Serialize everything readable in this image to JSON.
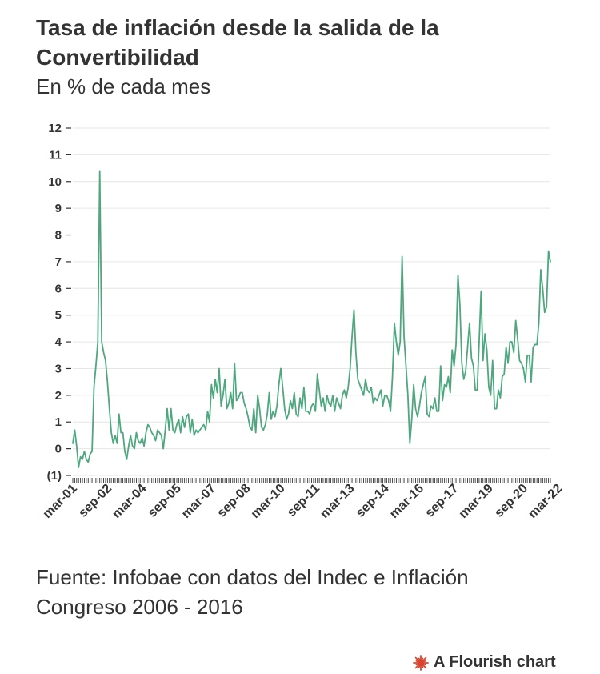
{
  "header": {
    "title": "Tasa de inflación desde la salida de la Convertibilidad",
    "subtitle": "En % de cada mes"
  },
  "footer": {
    "source": "Fuente: Infobae con datos del Indec e Inflación Congreso 2006 - 2016",
    "credit": "A Flourish chart"
  },
  "colors": {
    "line": "#4fa77f",
    "grid": "#e6e6e6",
    "text": "#333333",
    "flourish_logo": "#d9442d"
  },
  "chart_data": {
    "type": "line",
    "title": "",
    "xlabel": "",
    "ylabel": "",
    "ylim": [
      -1,
      12
    ],
    "y_ticks": [
      {
        "value": 12,
        "label": "12"
      },
      {
        "value": 11,
        "label": "11"
      },
      {
        "value": 10,
        "label": "10"
      },
      {
        "value": 9,
        "label": "9"
      },
      {
        "value": 8,
        "label": "8"
      },
      {
        "value": 7,
        "label": "7"
      },
      {
        "value": 6,
        "label": "6"
      },
      {
        "value": 5,
        "label": "5"
      },
      {
        "value": 4,
        "label": "4"
      },
      {
        "value": 3,
        "label": "3"
      },
      {
        "value": 2,
        "label": "2"
      },
      {
        "value": 1,
        "label": "1"
      },
      {
        "value": 0,
        "label": "0"
      },
      {
        "value": -1,
        "label": "(1)"
      }
    ],
    "x_ticks": [
      "mar-01",
      "sep-02",
      "mar-04",
      "sep-05",
      "mar-07",
      "sep-08",
      "mar-10",
      "sep-11",
      "mar-13",
      "sep-14",
      "mar-16",
      "sep-17",
      "mar-19",
      "sep-20",
      "mar-22"
    ],
    "x_start": "mar-01",
    "x_end": "jun-22",
    "grid": true,
    "series": [
      {
        "values": [
          0.2,
          0.7,
          0.1,
          -0.7,
          -0.3,
          -0.4,
          -0.1,
          -0.4,
          -0.5,
          -0.2,
          -0.1,
          2.3,
          3.1,
          4.0,
          10.4,
          4.0,
          3.6,
          3.3,
          2.5,
          1.5,
          0.6,
          0.2,
          0.5,
          0.2,
          1.3,
          0.6,
          0.6,
          -0.1,
          -0.4,
          0.1,
          0.5,
          0.1,
          0.0,
          0.6,
          0.3,
          0.2,
          0.4,
          0.1,
          0.6,
          0.9,
          0.8,
          0.6,
          0.5,
          0.3,
          0.7,
          0.6,
          0.5,
          0.0,
          0.7,
          1.5,
          0.7,
          1.5,
          0.7,
          0.6,
          0.9,
          1.1,
          0.6,
          1.2,
          0.8,
          1.2,
          1.3,
          0.6,
          1.1,
          0.5,
          0.7,
          0.6,
          0.7,
          0.8,
          0.9,
          0.7,
          1.4,
          1.0,
          2.4,
          1.9,
          2.6,
          2.1,
          3.0,
          1.6,
          2.0,
          2.6,
          1.5,
          1.7,
          2.1,
          1.5,
          3.2,
          1.8,
          1.9,
          2.1,
          2.1,
          1.7,
          1.5,
          1.2,
          0.8,
          0.7,
          1.5,
          0.6,
          2.0,
          1.5,
          0.8,
          0.7,
          0.9,
          1.3,
          2.1,
          1.1,
          1.4,
          1.2,
          1.6,
          2.4,
          3.0,
          2.3,
          1.5,
          1.1,
          1.3,
          1.8,
          1.5,
          2.1,
          1.3,
          1.2,
          1.9,
          1.5,
          2.3,
          1.4,
          1.4,
          1.3,
          1.6,
          1.7,
          1.4,
          2.8,
          2.2,
          1.6,
          1.9,
          1.4,
          2.0,
          1.7,
          1.6,
          2.0,
          1.4,
          1.9,
          1.7,
          1.5,
          2.0,
          2.2,
          1.9,
          2.3,
          3.0,
          4.2,
          5.2,
          3.6,
          2.6,
          2.4,
          2.2,
          2.0,
          2.6,
          2.2,
          2.1,
          2.3,
          1.7,
          1.9,
          1.8,
          2.0,
          2.2,
          1.6,
          2.0,
          2.0,
          1.8,
          1.4,
          2.7,
          4.7,
          4.0,
          3.5,
          4.0,
          7.2,
          4.2,
          3.1,
          2.0,
          0.2,
          1.1,
          2.4,
          1.5,
          1.2,
          1.6,
          2.1,
          2.4,
          2.7,
          1.3,
          1.2,
          1.6,
          1.5,
          1.9,
          1.4,
          1.4,
          3.1,
          1.8,
          2.4,
          2.3,
          2.7,
          2.1,
          3.7,
          3.1,
          3.9,
          6.5,
          5.4,
          3.2,
          2.6,
          2.9,
          3.8,
          4.7,
          3.4,
          3.1,
          2.2,
          2.2,
          4.0,
          5.9,
          3.3,
          4.3,
          3.7,
          2.3,
          2.0,
          3.3,
          1.5,
          1.5,
          2.2,
          1.9,
          2.7,
          2.8,
          3.8,
          3.2,
          4.0,
          4.0,
          3.6,
          4.8,
          4.1,
          3.3,
          3.2,
          3.0,
          2.5,
          3.5,
          3.5,
          2.5,
          3.8,
          3.9,
          3.9,
          4.7,
          6.7,
          6.0,
          5.1,
          5.3,
          7.4,
          7.0
        ]
      }
    ]
  }
}
